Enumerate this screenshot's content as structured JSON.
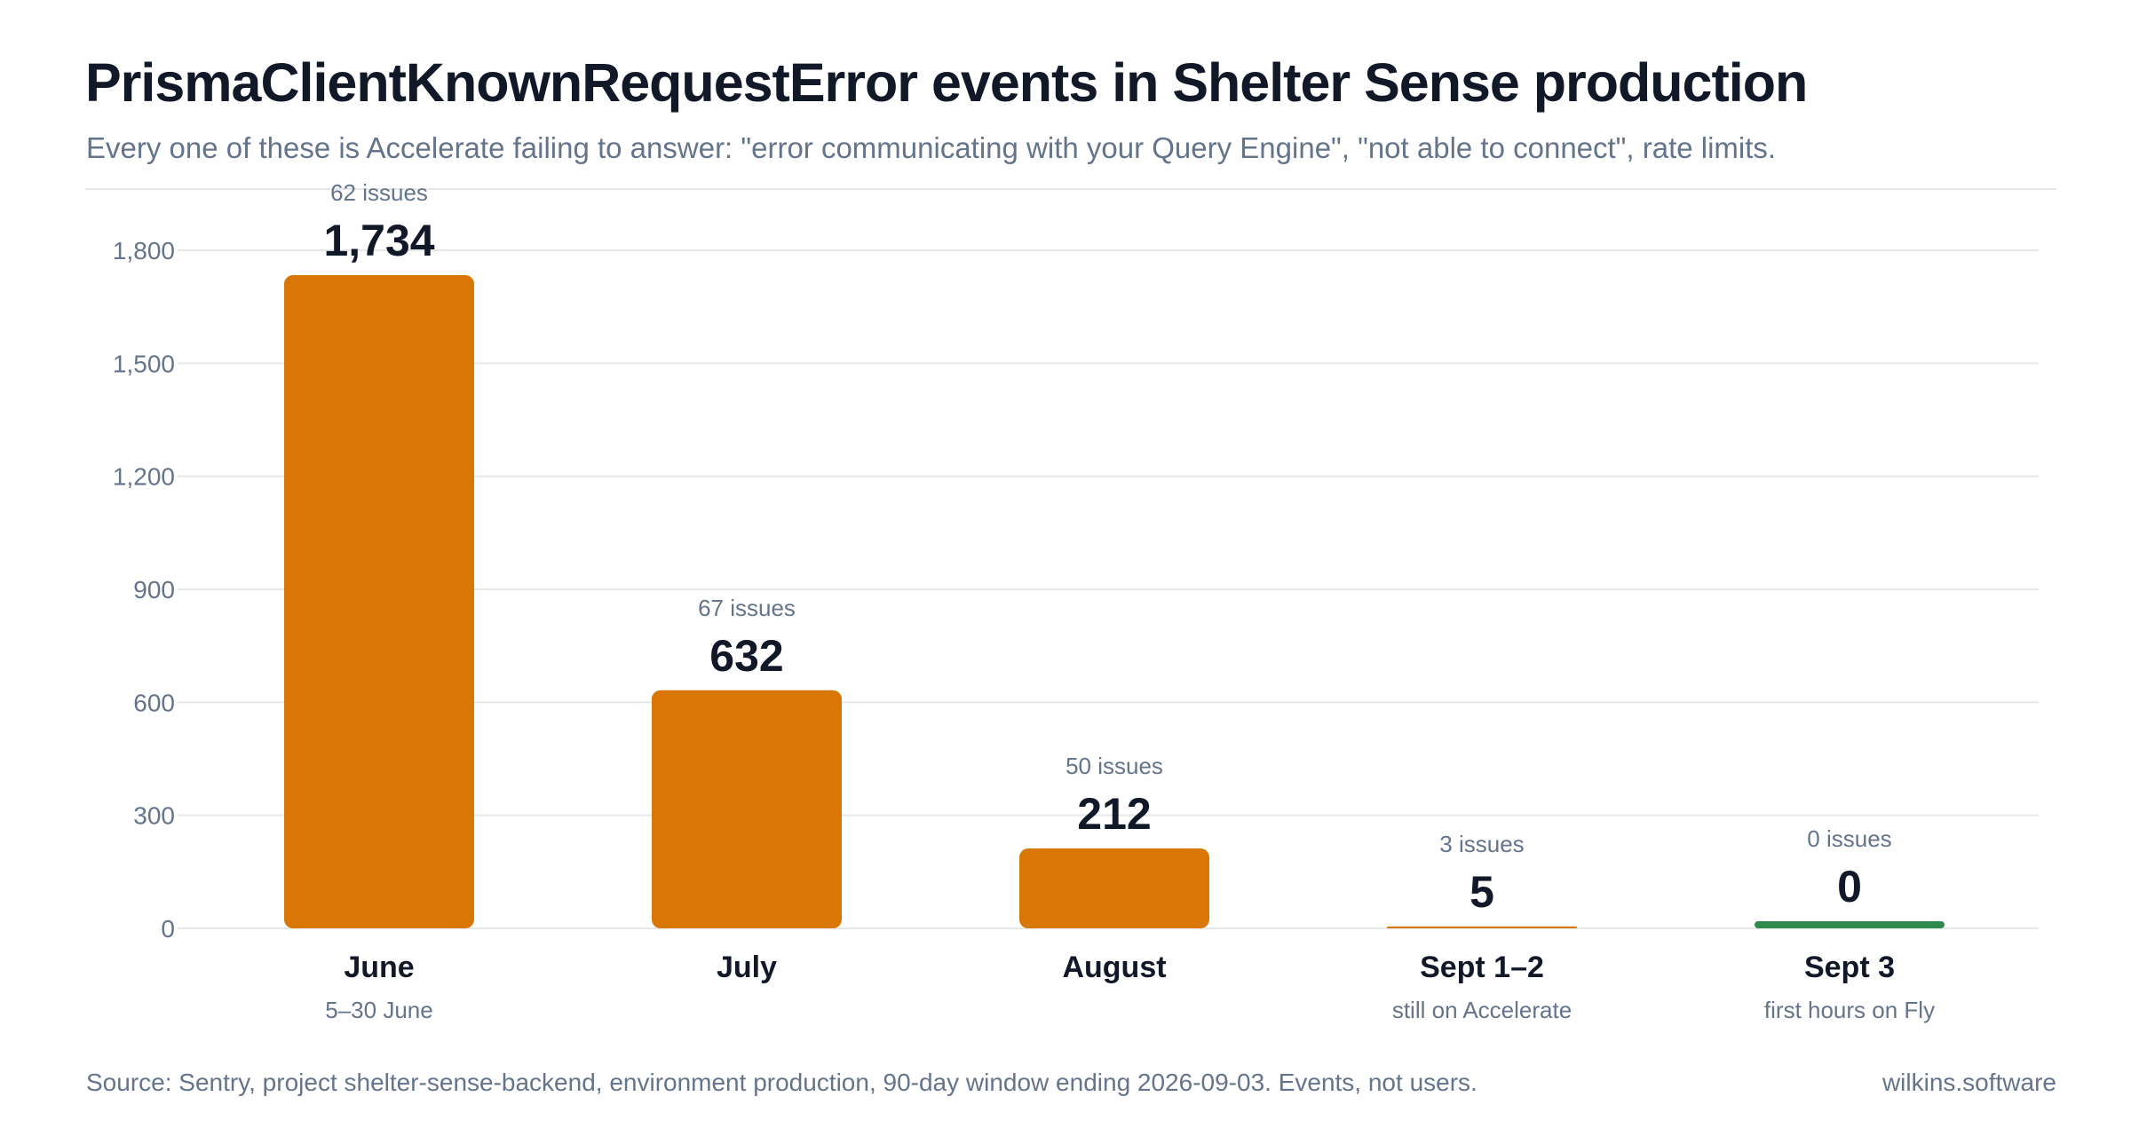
{
  "header": {
    "title": "PrismaClientKnownRequestError events in Shelter Sense production",
    "subtitle": "Every one of these is Accelerate failing to answer: \"error communicating with your Query Engine\", \"not able to connect\", rate limits."
  },
  "footer": {
    "source": "Source: Sentry, project shelter-sense-backend, environment production, 90-day window ending 2026-09-03. Events, not users.",
    "brand": "wilkins.software"
  },
  "colors": {
    "bar_default": "#d97706",
    "bar_highlight": "#2f8a4e",
    "grid": "#e5e7eb",
    "axis_text": "#64748b",
    "value_text": "#111827",
    "issues_text": "#64748b"
  },
  "chart_data": {
    "type": "bar",
    "categories": [
      "June",
      "July",
      "August",
      "Sept 1–2",
      "Sept 3"
    ],
    "sublabels": [
      "5–30 June",
      "",
      "",
      "still on Accelerate",
      "first hours on Fly"
    ],
    "values": [
      1734,
      632,
      212,
      5,
      0
    ],
    "value_labels": [
      "1,734",
      "632",
      "212",
      "5",
      "0"
    ],
    "issues": [
      "62 issues",
      "67 issues",
      "50 issues",
      "3 issues",
      "0 issues"
    ],
    "highlight_index": 4,
    "ylim": [
      0,
      1800
    ],
    "yticks": [
      0,
      300,
      600,
      900,
      1200,
      1500,
      1800
    ],
    "ytick_labels": [
      "0",
      "300",
      "600",
      "900",
      "1,200",
      "1,500",
      "1,800"
    ],
    "grid": true,
    "legend": "none",
    "xlabel": "",
    "ylabel": ""
  }
}
